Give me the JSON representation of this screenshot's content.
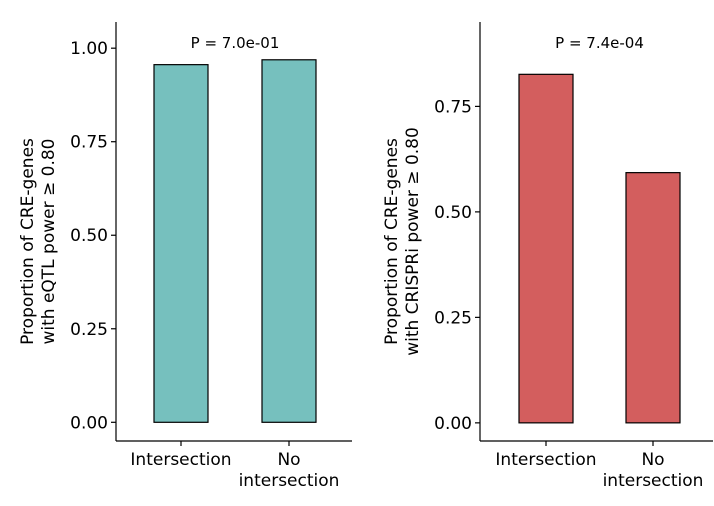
{
  "chart_data": [
    {
      "type": "bar",
      "categories": [
        "Intersection",
        "No\nintersection"
      ],
      "values": [
        0.956,
        0.969
      ],
      "ylabel": "Proportion of CRE-genes\nwith eQTL power ≥ 0.80",
      "annotation": "P = 7.0e-01",
      "ylim": [
        -0.05,
        1.07
      ],
      "yticks": [
        0.0,
        0.25,
        0.5,
        0.75,
        1.0
      ],
      "ytick_labels": [
        "0.00",
        "0.25",
        "0.50",
        "0.75",
        "1.00"
      ],
      "color": "#76c0be",
      "grid": false
    },
    {
      "type": "bar",
      "categories": [
        "Intersection",
        "No\nintersection"
      ],
      "values": [
        0.826,
        0.593
      ],
      "ylabel": "Proportion of CRE-genes\nwith CRISPRi power ≥ 0.80",
      "annotation": "P = 7.4e-04",
      "ylim": [
        -0.043,
        0.95
      ],
      "yticks": [
        0.0,
        0.25,
        0.5,
        0.75
      ],
      "ytick_labels": [
        "0.00",
        "0.25",
        "0.50",
        "0.75"
      ],
      "color": "#d35e5e",
      "grid": false
    }
  ]
}
